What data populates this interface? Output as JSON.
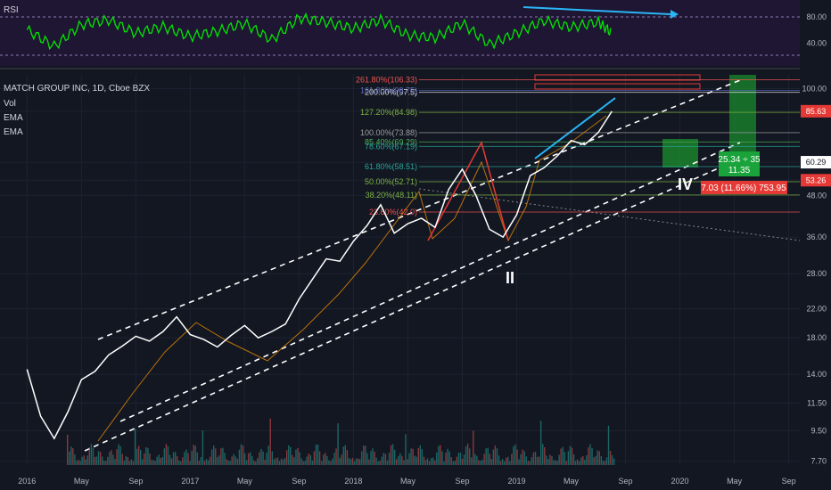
{
  "indicator_panel": {
    "name": "RSI",
    "ticks": [
      "80.00",
      "40.00"
    ]
  },
  "legend": {
    "symbol": "MATCH GROUP INC, 1D, Cboe BZX",
    "indicators": [
      "Vol",
      "EMA",
      "EMA"
    ]
  },
  "price_badges": [
    {
      "text": "85.63",
      "color": "#e53935"
    },
    {
      "text": "60.29",
      "color": "#ffffff"
    },
    {
      "text": "53.26",
      "color": "#e53935"
    }
  ],
  "position_labels": {
    "target": "25.34 ÷ 35\n11.35",
    "stop": "7.03 (11.66%) 753.95"
  },
  "wave_labels": {
    "wave_2": "II",
    "wave_4": "IV"
  },
  "fib_levels": [
    {
      "text": "261.80%(106.33)",
      "color": "#ef5350"
    },
    {
      "text": "200.00%(97.5)",
      "color": "#e0e0e0"
    },
    {
      "text": "161.80%(98.75)",
      "color": "#5c6bc0"
    },
    {
      "text": "127.20%(84.98)",
      "color": "#7cb342"
    },
    {
      "text": "100.00%(73.88)",
      "color": "#9e9e9e"
    },
    {
      "text": "85.40%(69.29)",
      "color": "#4caf50"
    },
    {
      "text": "78.60%(67.19)",
      "color": "#26a69a"
    },
    {
      "text": "61.80%(58.51)",
      "color": "#26a69a"
    },
    {
      "text": "50.00%(52.71)",
      "color": "#7cb342"
    },
    {
      "text": "38.20%(48.11)",
      "color": "#7cb342"
    },
    {
      "text": "23.60%(42.0)",
      "color": "#ef5350"
    }
  ],
  "colors": {
    "background": "#131722",
    "rsi_band": "#1f1633",
    "rsi_line": "#00e600",
    "price_line": "#ffffff",
    "channel": "#ffffff",
    "wave_red": "#e53935",
    "wave_orange": "#ff9800",
    "cyan": "#29b6f6",
    "target_zone": "#1b8a2d",
    "volume_up": "#26a69a",
    "volume_down": "#ef5350"
  },
  "chart_data": {
    "type": "line",
    "xlabel": "",
    "ylabel": "",
    "price_scale": "log",
    "x_ticks": [
      "2016",
      "May",
      "Sep",
      "2017",
      "May",
      "Sep",
      "2018",
      "May",
      "Sep",
      "2019",
      "May",
      "Sep",
      "2020",
      "May",
      "Sep"
    ],
    "y_ticks": [
      100.0,
      85.63,
      60.29,
      53.26,
      48.0,
      36.0,
      28.0,
      22.0,
      18.0,
      14.0,
      11.5,
      9.5,
      7.7
    ],
    "ylim": [
      7.5,
      110
    ],
    "series": [
      {
        "name": "",
        "x": [
          "2016-01",
          "2016-02",
          "2016-03",
          "2016-04",
          "2016-05",
          "2016-06",
          "2016-07",
          "2016-08",
          "2016-09",
          "2016-10",
          "2016-11",
          "2016-12",
          "2017-01",
          "2017-02",
          "2017-03",
          "2017-04",
          "2017-05",
          "2017-06",
          "2017-07",
          "2017-08",
          "2017-09",
          "2017-10",
          "2017-11",
          "2017-12",
          "2018-01",
          "2018-02",
          "2018-03",
          "2018-04",
          "2018-05",
          "2018-06",
          "2018-07",
          "2018-08",
          "2018-09",
          "2018-10",
          "2018-11",
          "2018-12",
          "2019-01",
          "2019-02",
          "2019-03",
          "2019-04",
          "2019-05",
          "2019-06",
          "2019-07",
          "2019-08"
        ],
        "values": [
          14.5,
          10.5,
          9.0,
          10.8,
          13.5,
          14.3,
          16.0,
          17.0,
          18.2,
          17.6,
          18.8,
          20.8,
          18.4,
          17.8,
          16.9,
          18.3,
          19.6,
          18.0,
          18.8,
          19.8,
          23.5,
          27.0,
          31.0,
          30.5,
          35.0,
          39.0,
          45.0,
          37.0,
          39.5,
          41.0,
          38.5,
          50.0,
          57.5,
          48.0,
          38.0,
          36.0,
          42.0,
          55.0,
          58.0,
          63.0,
          70.0,
          68.0,
          74.0,
          85.63
        ]
      },
      {
        "name": "RSI",
        "x": [
          "2016-01",
          "2016-03",
          "2016-05",
          "2016-07",
          "2016-09",
          "2016-11",
          "2017-01",
          "2017-03",
          "2017-05",
          "2017-07",
          "2017-09",
          "2017-11",
          "2018-01",
          "2018-03",
          "2018-05",
          "2018-07",
          "2018-09",
          "2018-11",
          "2019-01",
          "2019-03",
          "2019-05",
          "2019-07",
          "2019-08"
        ],
        "values": [
          60,
          35,
          68,
          75,
          55,
          65,
          50,
          58,
          70,
          45,
          78,
          72,
          62,
          75,
          52,
          48,
          70,
          38,
          55,
          74,
          64,
          72,
          55
        ]
      }
    ]
  }
}
